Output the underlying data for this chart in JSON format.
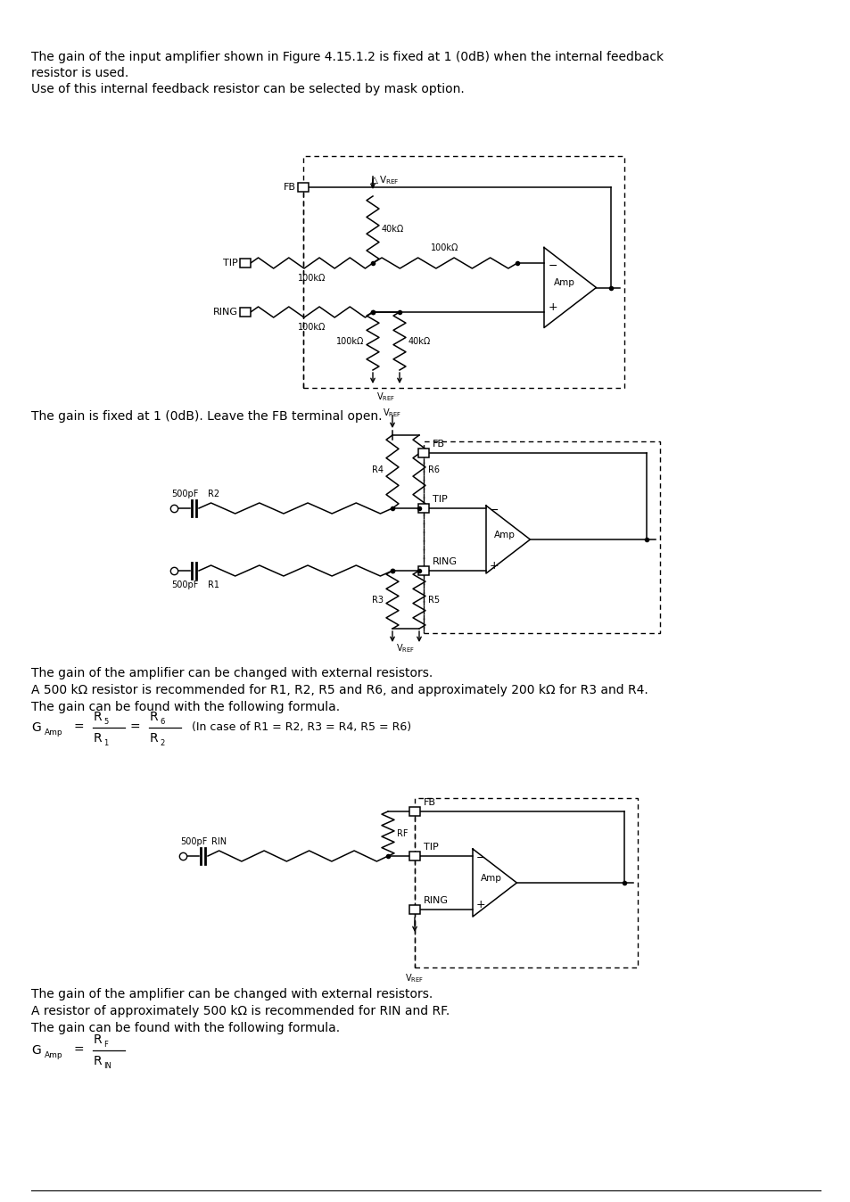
{
  "bg_color": "#ffffff",
  "text_color": "#231f20",
  "para1_line1": "The gain of the input amplifier shown in Figure 4.15.1.2 is fixed at 1 (0dB) when the internal feedback",
  "para1_line2": "resistor is used.",
  "para1_line3": "Use of this internal feedback resistor can be selected by mask option.",
  "para2": "The gain is fixed at 1 (0dB). Leave the FB terminal open.",
  "para3_line1": "The gain of the amplifier can be changed with external resistors.",
  "para3_line2": "A 500 kΩ resistor is recommended for R1, R2, R5 and R6, and approximately 200 kΩ for R3 and R4.",
  "para3_line3": "The gain can be found with the following formula.",
  "para4_line1": "The gain of the amplifier can be changed with external resistors.",
  "para4_line2": "A resistor of approximately 500 kΩ is recommended for RIN and RF.",
  "para4_line3": "The gain can be found with the following formula.",
  "font_size_body": 10,
  "font_size_label": 8,
  "font_size_small": 7
}
